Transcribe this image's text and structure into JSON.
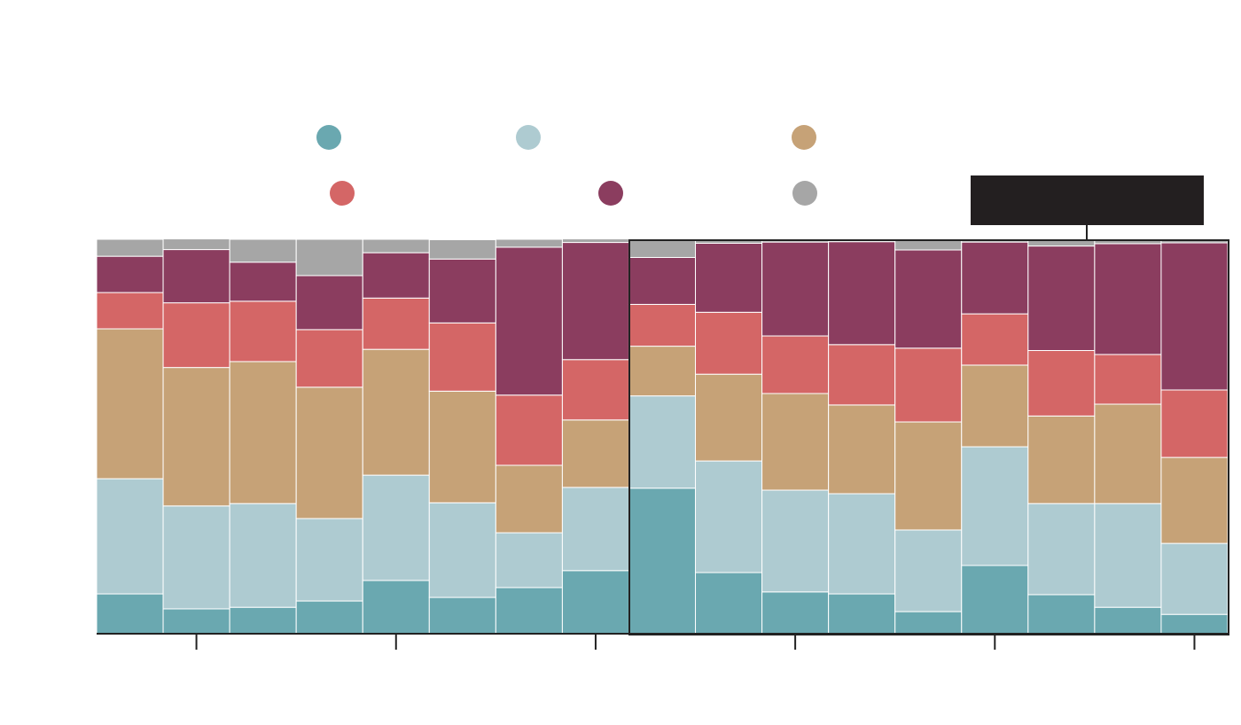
{
  "chart_data": {
    "type": "bar",
    "stacked": true,
    "categories": [
      null,
      null,
      null,
      null,
      null,
      null,
      null,
      null,
      null,
      null,
      null,
      null,
      null,
      null,
      null,
      null,
      null
    ],
    "ylim": [
      0,
      100
    ],
    "series": [
      {
        "color": "#6aa8b0",
        "values": [
          10.1,
          6.3,
          6.7,
          8.3,
          13.5,
          9.2,
          11.7,
          16.0,
          36.9,
          15.5,
          10.6,
          10.1,
          5.6,
          17.3,
          9.9,
          6.7,
          4.9
        ]
      },
      {
        "color": "#aecbd1",
        "values": [
          29.2,
          26.1,
          26.3,
          20.9,
          26.7,
          24.0,
          13.9,
          21.1,
          23.4,
          28.3,
          25.8,
          25.4,
          20.7,
          30.1,
          23.1,
          26.3,
          18.0
        ]
      },
      {
        "color": "#c6a277",
        "values": [
          38.0,
          35.1,
          36.0,
          33.3,
          31.9,
          28.3,
          17.1,
          17.1,
          12.6,
          22.0,
          24.5,
          22.5,
          27.4,
          20.7,
          22.2,
          25.2,
          21.8
        ]
      },
      {
        "color": "#d46666",
        "values": [
          9.2,
          16.4,
          15.3,
          14.6,
          13.0,
          17.3,
          17.8,
          15.3,
          10.6,
          15.7,
          14.6,
          15.3,
          18.7,
          13.0,
          16.6,
          12.6,
          17.1
        ]
      },
      {
        "color": "#8b3d5f",
        "values": [
          9.2,
          13.5,
          9.9,
          13.7,
          11.5,
          16.2,
          37.5,
          29.7,
          11.9,
          17.5,
          23.8,
          26.1,
          24.9,
          18.2,
          26.5,
          28.1,
          37.3
        ]
      },
      {
        "color": "#a6a6a6",
        "values": [
          4.3,
          2.7,
          5.8,
          9.2,
          3.4,
          4.9,
          2.0,
          0.9,
          4.7,
          0.9,
          0.7,
          0.7,
          2.7,
          0.7,
          1.6,
          1.1,
          0.9
        ]
      }
    ]
  }
}
